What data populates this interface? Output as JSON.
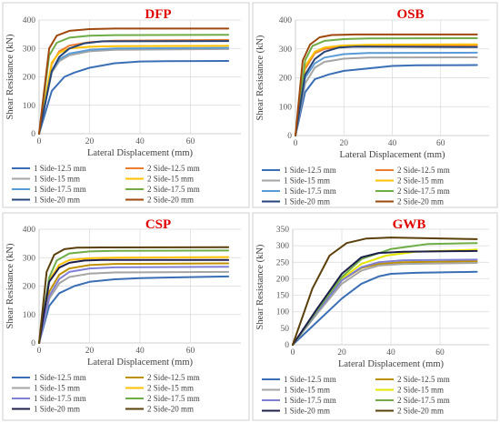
{
  "chart_data": [
    {
      "type": "line",
      "title": "DFP",
      "xlabel": "Lateral Displacement (mm)",
      "ylabel": "Shear Resistance (kN)",
      "xlim": [
        0,
        80
      ],
      "ylim": [
        0,
        400
      ],
      "xticks": [
        0,
        20,
        40,
        60
      ],
      "yticks": [
        0,
        100,
        200,
        300,
        400
      ],
      "grid": true,
      "legend_position": "bottom",
      "series": [
        {
          "name": "1 Side-12.5 mm",
          "color": "#3a6fb5",
          "x": [
            0,
            5,
            10,
            14,
            20,
            30,
            40,
            50,
            75
          ],
          "y": [
            0,
            150,
            200,
            215,
            232,
            248,
            254,
            255,
            256
          ]
        },
        {
          "name": "2 Side-12.5 mm",
          "color": "#ed7d31",
          "x": [
            0,
            5,
            8,
            12,
            20,
            30,
            75
          ],
          "y": [
            0,
            245,
            290,
            310,
            322,
            327,
            330
          ]
        },
        {
          "name": "1 Side-15 mm",
          "color": "#a5a5a5",
          "x": [
            0,
            5,
            8,
            12,
            20,
            30,
            75
          ],
          "y": [
            0,
            215,
            255,
            276,
            290,
            295,
            298
          ]
        },
        {
          "name": "2 Side-15 mm",
          "color": "#ffc000",
          "x": [
            0,
            5,
            8,
            12,
            20,
            30,
            75
          ],
          "y": [
            0,
            250,
            285,
            300,
            306,
            308,
            309
          ]
        },
        {
          "name": "1 Side-17.5 mm",
          "color": "#5b9bd5",
          "x": [
            0,
            5,
            8,
            12,
            20,
            30,
            75
          ],
          "y": [
            0,
            220,
            262,
            282,
            295,
            300,
            302
          ]
        },
        {
          "name": "2 Side-17.5 mm",
          "color": "#70ad47",
          "x": [
            0,
            4,
            7,
            12,
            20,
            30,
            75
          ],
          "y": [
            0,
            275,
            320,
            338,
            345,
            347,
            348
          ]
        },
        {
          "name": "1 Side-20 mm",
          "color": "#264478",
          "x": [
            0,
            5,
            8,
            12,
            18,
            25,
            75
          ],
          "y": [
            0,
            220,
            270,
            300,
            318,
            325,
            326
          ]
        },
        {
          "name": "2 Side-20 mm",
          "color": "#9e480e",
          "x": [
            0,
            4,
            7,
            12,
            20,
            30,
            75
          ],
          "y": [
            0,
            300,
            345,
            362,
            368,
            370,
            370
          ]
        }
      ]
    },
    {
      "type": "line",
      "title": "OSB",
      "xlabel": "Lateral Displacement (mm)",
      "ylabel": "Shear Resistance (kN)",
      "xlim": [
        0,
        80
      ],
      "ylim": [
        0,
        400
      ],
      "xticks": [
        0,
        20,
        40,
        60
      ],
      "yticks": [
        0,
        100,
        200,
        300,
        400
      ],
      "grid": true,
      "legend_position": "bottom",
      "series": [
        {
          "name": "1 Side-12.5 mm",
          "color": "#3a6fb5",
          "x": [
            0,
            4,
            8,
            14,
            20,
            30,
            40,
            50,
            75
          ],
          "y": [
            0,
            150,
            195,
            212,
            224,
            232,
            241,
            243,
            244
          ]
        },
        {
          "name": "2 Side-12.5 mm",
          "color": "#ed7d31",
          "x": [
            0,
            4,
            8,
            12,
            20,
            30,
            75
          ],
          "y": [
            0,
            230,
            285,
            300,
            307,
            310,
            312
          ]
        },
        {
          "name": "1 Side-15 mm",
          "color": "#a5a5a5",
          "x": [
            0,
            4,
            8,
            12,
            20,
            30,
            75
          ],
          "y": [
            0,
            180,
            235,
            255,
            266,
            270,
            271
          ]
        },
        {
          "name": "2 Side-15 mm",
          "color": "#ffc000",
          "x": [
            0,
            4,
            8,
            12,
            20,
            30,
            75
          ],
          "y": [
            0,
            240,
            290,
            305,
            312,
            314,
            316
          ]
        },
        {
          "name": "1 Side-17.5 mm",
          "color": "#5b9bd5",
          "x": [
            0,
            4,
            8,
            12,
            20,
            30,
            75
          ],
          "y": [
            0,
            200,
            250,
            270,
            282,
            286,
            287
          ]
        },
        {
          "name": "2 Side-17.5 mm",
          "color": "#70ad47",
          "x": [
            0,
            4,
            7,
            12,
            20,
            30,
            75
          ],
          "y": [
            0,
            260,
            310,
            328,
            334,
            336,
            337
          ]
        },
        {
          "name": "1 Side-20 mm",
          "color": "#264478",
          "x": [
            0,
            4,
            8,
            12,
            18,
            25,
            75
          ],
          "y": [
            0,
            210,
            265,
            290,
            305,
            308,
            306
          ]
        },
        {
          "name": "2 Side-20 mm",
          "color": "#9e480e",
          "x": [
            0,
            3,
            6,
            10,
            15,
            25,
            75
          ],
          "y": [
            0,
            260,
            315,
            340,
            348,
            350,
            350
          ]
        }
      ]
    },
    {
      "type": "line",
      "title": "CSP",
      "xlabel": "Lateral Displacement (mm)",
      "ylabel": "Shear Resistance (kN)",
      "xlim": [
        0,
        80
      ],
      "ylim": [
        0,
        400
      ],
      "xticks": [
        0,
        20,
        40,
        60
      ],
      "yticks": [
        0,
        100,
        200,
        300,
        400
      ],
      "grid": true,
      "legend_position": "bottom",
      "series": [
        {
          "name": "1 Side-12.5 mm",
          "color": "#3a6fb5",
          "x": [
            0,
            4,
            8,
            14,
            20,
            30,
            40,
            50,
            75
          ],
          "y": [
            0,
            130,
            175,
            200,
            215,
            224,
            228,
            230,
            234
          ]
        },
        {
          "name": "2 Side-12.5 mm",
          "color": "#bf9000",
          "x": [
            0,
            4,
            8,
            12,
            20,
            30,
            75
          ],
          "y": [
            0,
            180,
            240,
            262,
            274,
            278,
            280
          ]
        },
        {
          "name": "1 Side-15 mm",
          "color": "#a5a5a5",
          "x": [
            0,
            4,
            8,
            12,
            20,
            30,
            75
          ],
          "y": [
            0,
            155,
            210,
            232,
            244,
            248,
            250
          ]
        },
        {
          "name": "2 Side-15 mm",
          "color": "#ffc000",
          "x": [
            0,
            4,
            8,
            12,
            20,
            30,
            75
          ],
          "y": [
            0,
            220,
            275,
            292,
            298,
            300,
            302
          ]
        },
        {
          "name": "1 Side-17.5 mm",
          "color": "#7f7fd5",
          "x": [
            0,
            4,
            8,
            12,
            20,
            30,
            75
          ],
          "y": [
            0,
            165,
            225,
            250,
            262,
            266,
            268
          ]
        },
        {
          "name": "2 Side-17.5 mm",
          "color": "#70ad47",
          "x": [
            0,
            4,
            7,
            12,
            20,
            30,
            75
          ],
          "y": [
            0,
            230,
            290,
            315,
            322,
            324,
            325
          ]
        },
        {
          "name": "1 Side-20 mm",
          "color": "#1f1f4d",
          "x": [
            0,
            4,
            8,
            12,
            18,
            25,
            75
          ],
          "y": [
            0,
            215,
            265,
            282,
            290,
            292,
            292
          ]
        },
        {
          "name": "2 Side-20 mm",
          "color": "#5a3f0a",
          "x": [
            0,
            3,
            6,
            10,
            15,
            25,
            75
          ],
          "y": [
            0,
            250,
            310,
            330,
            335,
            336,
            337
          ]
        }
      ]
    },
    {
      "type": "line",
      "title": "GWB",
      "xlabel": "Lateral Displacement (mm)",
      "ylabel": "Shear Resistance (kN)",
      "xlim": [
        0,
        80
      ],
      "ylim": [
        0,
        350
      ],
      "xticks": [
        0,
        20,
        40,
        60
      ],
      "yticks": [
        0,
        50,
        100,
        150,
        200,
        250,
        300,
        350
      ],
      "grid": true,
      "legend_position": "bottom",
      "series": [
        {
          "name": "1 Side-12.5 mm",
          "color": "#3a6fb5",
          "x": [
            0,
            10,
            20,
            28,
            35,
            40,
            50,
            75
          ],
          "y": [
            0,
            70,
            140,
            185,
            207,
            215,
            218,
            221
          ]
        },
        {
          "name": "2 Side-12.5 mm",
          "color": "#bf9000",
          "x": [
            0,
            10,
            20,
            28,
            35,
            45,
            75
          ],
          "y": [
            0,
            100,
            195,
            233,
            245,
            250,
            253
          ]
        },
        {
          "name": "1 Side-15 mm",
          "color": "#a5a5a5",
          "x": [
            0,
            10,
            20,
            28,
            35,
            45,
            75
          ],
          "y": [
            0,
            95,
            185,
            225,
            240,
            245,
            248
          ]
        },
        {
          "name": "2 Side-15 mm",
          "color": "#e6e600",
          "x": [
            0,
            10,
            20,
            28,
            38,
            50,
            75
          ],
          "y": [
            0,
            100,
            200,
            245,
            270,
            282,
            288
          ]
        },
        {
          "name": "1 Side-17.5 mm",
          "color": "#7f7fd5",
          "x": [
            0,
            10,
            20,
            28,
            35,
            45,
            75
          ],
          "y": [
            0,
            100,
            195,
            235,
            250,
            256,
            258
          ]
        },
        {
          "name": "2 Side-17.5 mm",
          "color": "#70ad47",
          "x": [
            0,
            10,
            20,
            28,
            40,
            55,
            75
          ],
          "y": [
            0,
            105,
            205,
            260,
            290,
            305,
            308
          ]
        },
        {
          "name": "1 Side-20 mm",
          "color": "#1f1f4d",
          "x": [
            0,
            10,
            20,
            28,
            35,
            45,
            75
          ],
          "y": [
            0,
            110,
            215,
            265,
            278,
            282,
            284
          ]
        },
        {
          "name": "2 Side-20 mm",
          "color": "#5a3f0a",
          "x": [
            0,
            8,
            15,
            22,
            30,
            40,
            75
          ],
          "y": [
            0,
            170,
            270,
            308,
            322,
            325,
            320
          ]
        }
      ]
    }
  ]
}
